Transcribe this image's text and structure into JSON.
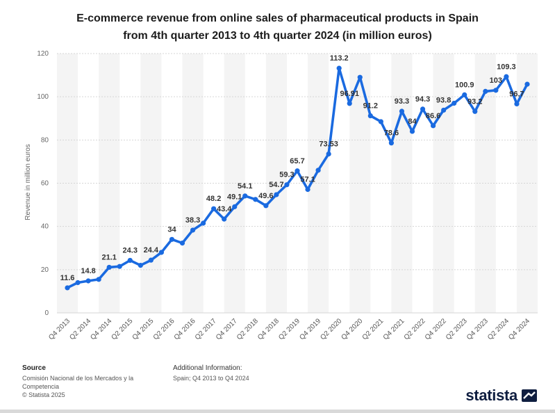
{
  "title_lines": [
    "E-commerce revenue from online sales of pharmaceutical products in Spain",
    "from 4th quarter 2013 to 4th quarter 2024 (in million euros)"
  ],
  "source_heading": "Source",
  "source_lines": [
    "Comisión Nacional de los Mercados y la",
    "Competencia",
    "© Statista 2025"
  ],
  "additional_heading": "Additional Information:",
  "additional_text": "Spain; Q4 2013 to Q4 2024",
  "brand": "statista",
  "colors": {
    "line": "#1a6ae0",
    "band": "#f4f4f4",
    "grid": "#d5d5d5"
  },
  "chart_data": {
    "type": "line",
    "title": "E-commerce revenue from online sales of pharmaceutical products in Spain from 4th quarter 2013 to 4th quarter 2024 (in million euros)",
    "xlabel": "",
    "ylabel": "Revenue in million euros",
    "ylim": [
      0,
      120
    ],
    "yticks": [
      0,
      20,
      40,
      60,
      80,
      100,
      120
    ],
    "categories": [
      "Q4 2013",
      "Q1 2014",
      "Q2 2014",
      "Q3 2014",
      "Q4 2014",
      "Q1 2015",
      "Q2 2015",
      "Q3 2015",
      "Q4 2015",
      "Q1 2016",
      "Q2 2016",
      "Q3 2016",
      "Q4 2016",
      "Q1 2017",
      "Q2 2017",
      "Q3 2017",
      "Q4 2017",
      "Q1 2018",
      "Q2 2018",
      "Q3 2018",
      "Q4 2018",
      "Q1 2019",
      "Q2 2019",
      "Q3 2019",
      "Q4 2019",
      "Q1 2020",
      "Q2 2020",
      "Q3 2020",
      "Q4 2020",
      "Q1 2021",
      "Q2 2021",
      "Q3 2021",
      "Q4 2021",
      "Q1 2022",
      "Q2 2022",
      "Q3 2022",
      "Q4 2022",
      "Q1 2023",
      "Q2 2023",
      "Q3 2023",
      "Q4 2023",
      "Q1 2024",
      "Q2 2024",
      "Q3 2024",
      "Q4 2024"
    ],
    "tick_labels": [
      "Q4 2013",
      "Q2 2014",
      "Q4 2014",
      "Q2 2015",
      "Q4 2015",
      "Q2 2016",
      "Q4 2016",
      "Q2 2017",
      "Q4 2017",
      "Q2 2018",
      "Q4 2018",
      "Q2 2019",
      "Q4 2019",
      "Q2 2020",
      "Q4 2020",
      "Q2 2021",
      "Q4 2021",
      "Q2 2022",
      "Q4 2022",
      "Q2 2023",
      "Q4 2023",
      "Q2 2024",
      "Q4 2024"
    ],
    "series": [
      {
        "name": "Revenue",
        "values": [
          11.6,
          14,
          14.8,
          15.5,
          21.1,
          21.5,
          24.3,
          22,
          24.4,
          28,
          34,
          32.3,
          38.3,
          41.5,
          48.2,
          43.4,
          49.1,
          54.1,
          52.5,
          49.6,
          54.7,
          59.3,
          65.7,
          57.1,
          66,
          73.53,
          113.2,
          96.91,
          109,
          91.2,
          88.5,
          78.6,
          93.3,
          84,
          94.3,
          86.6,
          93.8,
          97,
          100.9,
          93.2,
          102.5,
          103,
          109.3,
          96.7,
          105.8
        ],
        "data_labels": {
          "0": "11.6",
          "2": "14.8",
          "4": "21.1",
          "6": "24.3",
          "8": "24.4",
          "10": "34",
          "12": "38.3",
          "14": "48.2",
          "15": "43.4",
          "16": "49.1",
          "17": "54.1",
          "19": "49.6",
          "20": "54.7",
          "21": "59.3",
          "22": "65.7",
          "23": "57.1",
          "25": "73.53",
          "26": "113.2",
          "27": "96.91",
          "29": "91.2",
          "31": "78.6",
          "32": "93.3",
          "33": "84",
          "34": "94.3",
          "35": "86.6",
          "36": "93.8",
          "38": "100.9",
          "39": "93.2",
          "41": "103",
          "42": "109.3",
          "43": "96.7"
        }
      }
    ],
    "grid": true,
    "legend": "none"
  }
}
